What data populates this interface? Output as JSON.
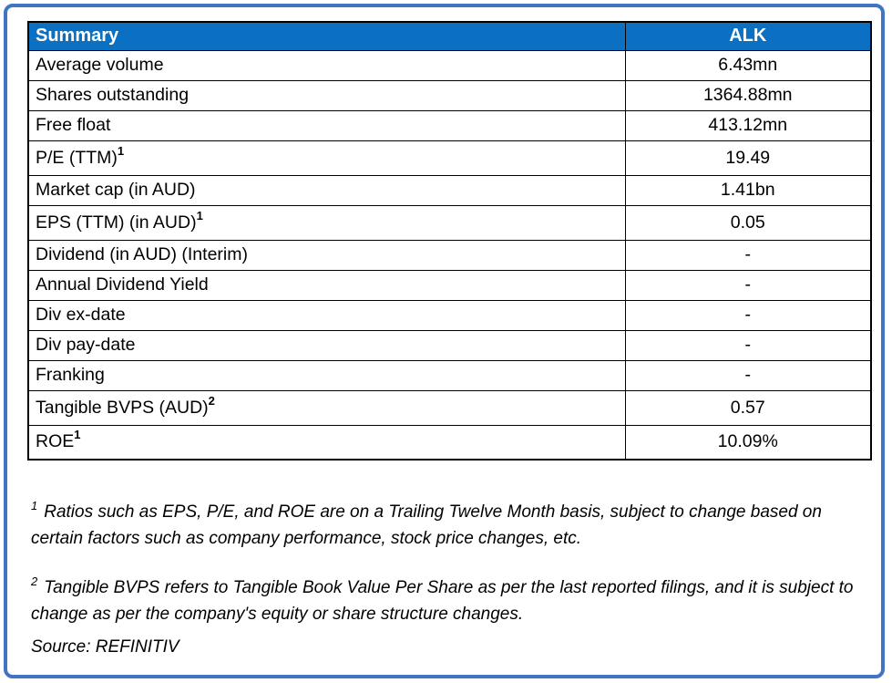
{
  "accent": {
    "header_bg": "#0c70c2",
    "frame_border": "#4472c4",
    "header_text": "#ffffff"
  },
  "table": {
    "header": {
      "label": "Summary",
      "value": "ALK"
    },
    "rows": [
      {
        "label": "Average volume",
        "sup": "",
        "value": "6.43mn"
      },
      {
        "label": "Shares outstanding",
        "sup": "",
        "value": "1364.88mn"
      },
      {
        "label": "Free float",
        "sup": "",
        "value": "413.12mn"
      },
      {
        "label": "P/E (TTM)",
        "sup": "1",
        "value": "19.49"
      },
      {
        "label": "Market cap (in AUD)",
        "sup": "",
        "value": "1.41bn"
      },
      {
        "label": "EPS (TTM) (in AUD)",
        "sup": "1",
        "value": "0.05"
      },
      {
        "label": "Dividend (in AUD) (Interim)",
        "sup": "",
        "value": "-"
      },
      {
        "label": "Annual Dividend Yield",
        "sup": "",
        "value": "-"
      },
      {
        "label": "Div ex-date",
        "sup": "",
        "value": "-"
      },
      {
        "label": "Div pay-date",
        "sup": "",
        "value": "-"
      },
      {
        "label": "Franking",
        "sup": "",
        "value": "-"
      },
      {
        "label": "Tangible BVPS (AUD)",
        "sup": "2",
        "value": "0.57"
      },
      {
        "label": "ROE",
        "sup": "1",
        "value": "10.09%"
      }
    ]
  },
  "footnotes": [
    {
      "marker": "1",
      "text": "Ratios such as EPS, P/E,  and ROE are on a Trailing Twelve Month basis, subject to change based on certain factors such as company performance, stock price changes, etc."
    },
    {
      "marker": "2",
      "text": "Tangible BVPS refers to Tangible Book Value Per Share as per the last reported filings, and it is subject to change as per the company's equity or share structure changes."
    }
  ],
  "source": "Source: REFINITIV"
}
